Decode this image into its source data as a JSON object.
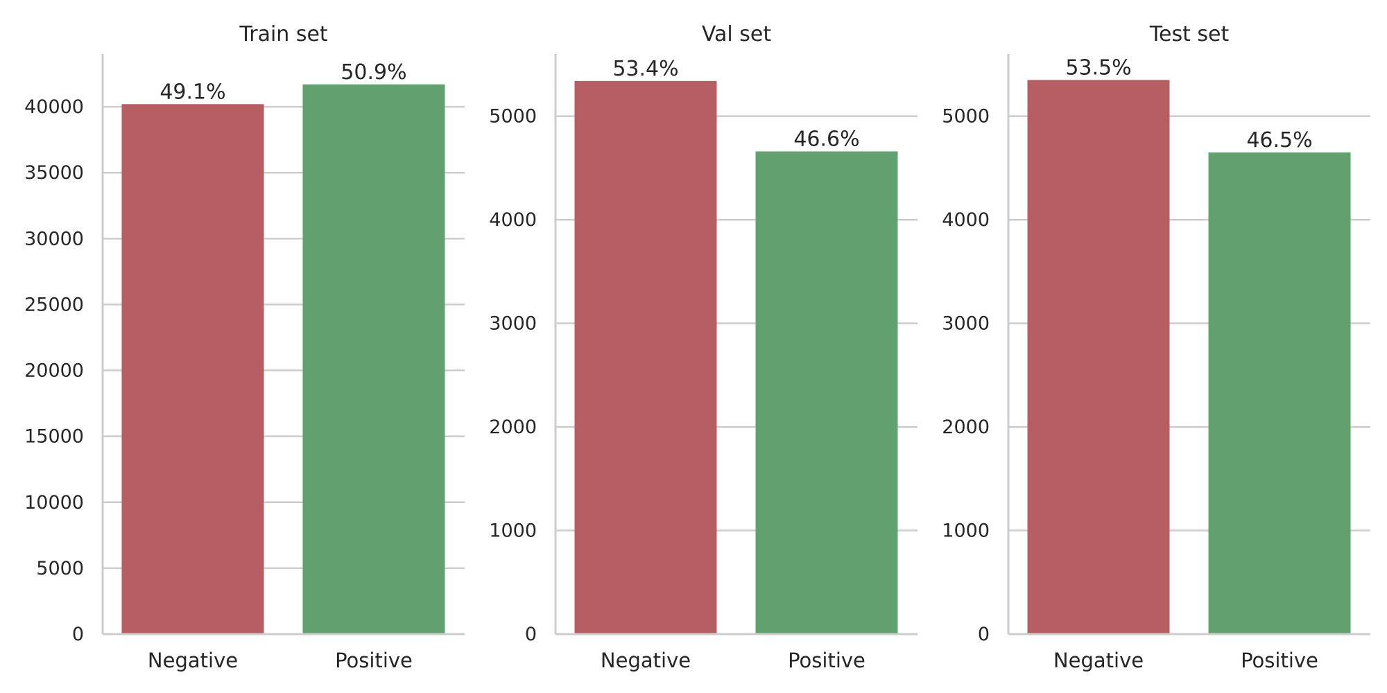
{
  "colors": {
    "negative": "#b65e62",
    "positive": "#61a06f",
    "grid": "#cccccc",
    "text": "#262626"
  },
  "chart_data": [
    {
      "type": "bar",
      "title": "Train set",
      "categories": [
        "Negative",
        "Positive"
      ],
      "values": [
        40200,
        41700
      ],
      "data_labels": [
        "49.1%",
        "50.9%"
      ],
      "ylim": [
        0,
        44000
      ],
      "yticks": [
        0,
        5000,
        10000,
        15000,
        20000,
        25000,
        30000,
        35000,
        40000
      ],
      "ytick_labels": [
        "0",
        "5000",
        "10000",
        "15000",
        "20000",
        "25000",
        "30000",
        "35000",
        "40000"
      ],
      "grid": true
    },
    {
      "type": "bar",
      "title": "Val set",
      "categories": [
        "Negative",
        "Positive"
      ],
      "values": [
        5340,
        4660
      ],
      "data_labels": [
        "53.4%",
        "46.6%"
      ],
      "ylim": [
        0,
        5600
      ],
      "yticks": [
        0,
        1000,
        2000,
        3000,
        4000,
        5000
      ],
      "ytick_labels": [
        "0",
        "1000",
        "2000",
        "3000",
        "4000",
        "5000"
      ],
      "grid": true
    },
    {
      "type": "bar",
      "title": "Test set",
      "categories": [
        "Negative",
        "Positive"
      ],
      "values": [
        5350,
        4650
      ],
      "data_labels": [
        "53.5%",
        "46.5%"
      ],
      "ylim": [
        0,
        5600
      ],
      "yticks": [
        0,
        1000,
        2000,
        3000,
        4000,
        5000
      ],
      "ytick_labels": [
        "0",
        "1000",
        "2000",
        "3000",
        "4000",
        "5000"
      ],
      "grid": true
    }
  ]
}
